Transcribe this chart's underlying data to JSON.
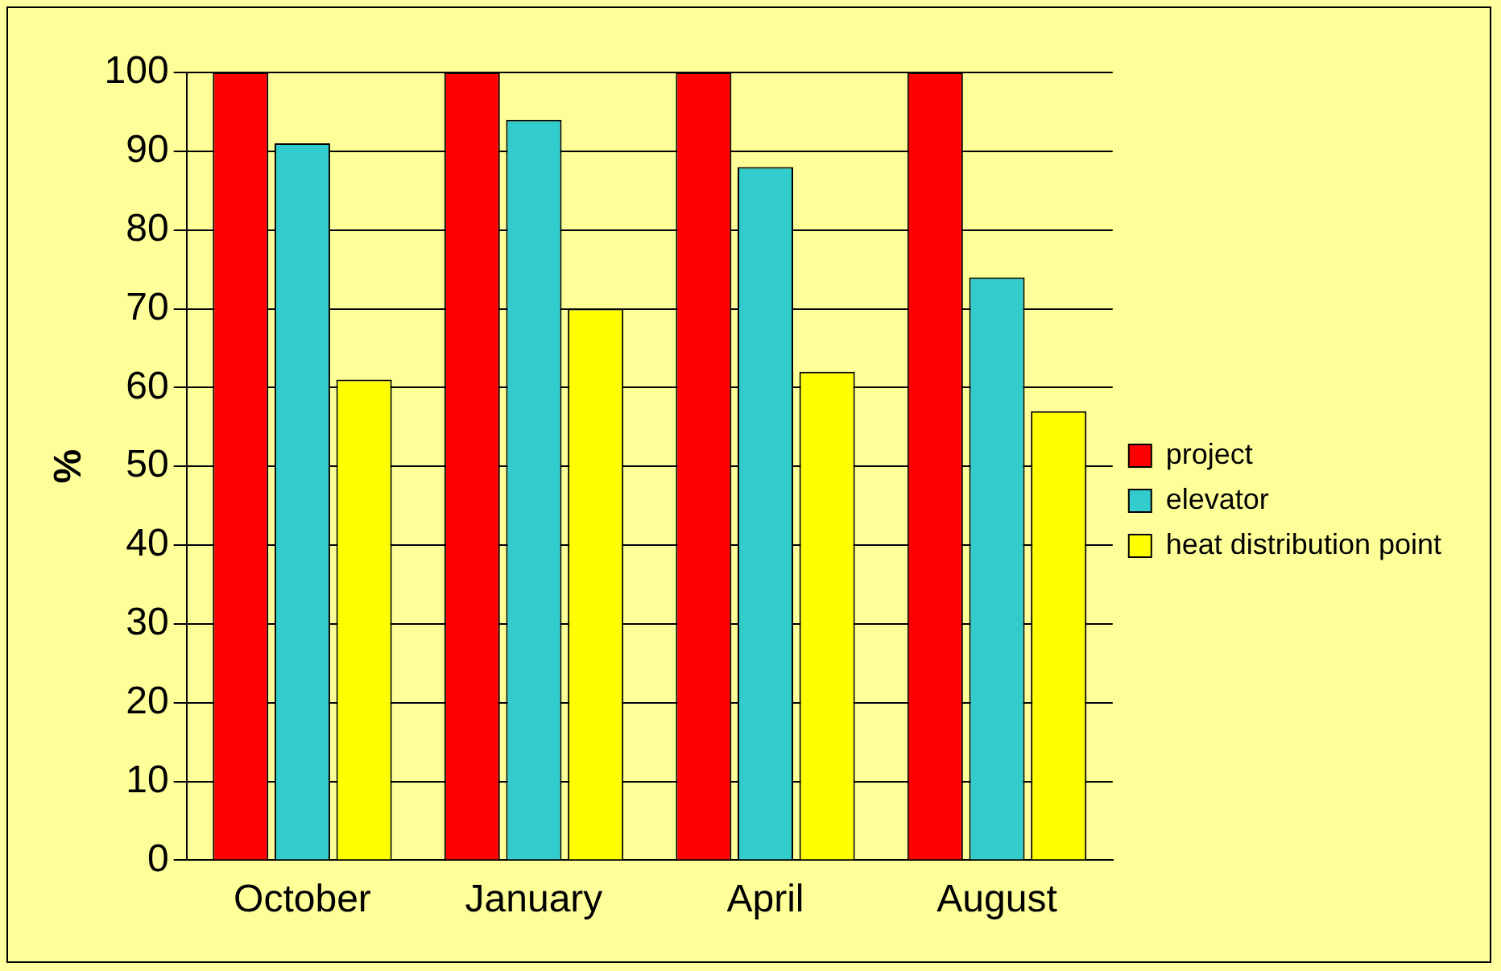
{
  "chart_data": {
    "type": "bar",
    "ylabel": "%",
    "categories": [
      "October",
      "January",
      "April",
      "August"
    ],
    "series": [
      {
        "name": "project",
        "color": "#ff0000",
        "values": [
          100,
          100,
          100,
          100
        ]
      },
      {
        "name": "elevator",
        "color": "#33cccc",
        "values": [
          91,
          94,
          88,
          74
        ]
      },
      {
        "name": "heat distribution point",
        "color": "#ffff00",
        "values": [
          61,
          70,
          62,
          57
        ]
      }
    ],
    "ylim": [
      0,
      100
    ],
    "yticks": [
      0,
      10,
      20,
      30,
      40,
      50,
      60,
      70,
      80,
      90,
      100
    ],
    "grid": "y",
    "legend": "right"
  }
}
